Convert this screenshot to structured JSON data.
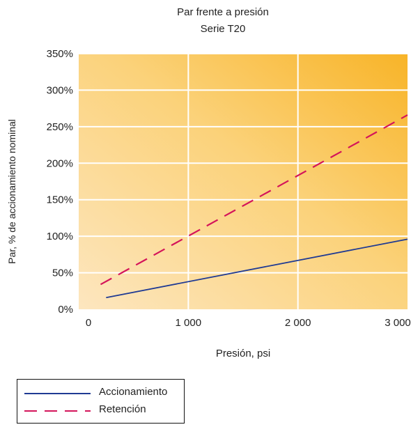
{
  "chart_data": {
    "type": "line",
    "title": "Par frente a presión",
    "subtitle": "Serie T20",
    "xlabel": "Presión, psi",
    "ylabel": "Par, % de accionamiento nominal",
    "xlim": [
      0,
      3000
    ],
    "ylim": [
      0,
      350
    ],
    "x_ticks": [
      0,
      1000,
      2000,
      3000
    ],
    "x_tick_labels": [
      "0",
      "1 000",
      "2 000",
      "3 000"
    ],
    "y_ticks": [
      0,
      50,
      100,
      150,
      200,
      250,
      300,
      350
    ],
    "y_tick_labels": [
      "0%",
      "50%",
      "100%",
      "150%",
      "200%",
      "250%",
      "300%",
      "350%"
    ],
    "grid": true,
    "legend_position": "bottom-left",
    "series": [
      {
        "name": "Accionamiento",
        "x": [
          250,
          3000
        ],
        "y": [
          16,
          96
        ],
        "color": "#1f3a93",
        "style": "solid"
      },
      {
        "name": "Retención",
        "x": [
          200,
          3000
        ],
        "y": [
          34,
          266
        ],
        "color": "#d4145a",
        "style": "dashed"
      }
    ]
  }
}
